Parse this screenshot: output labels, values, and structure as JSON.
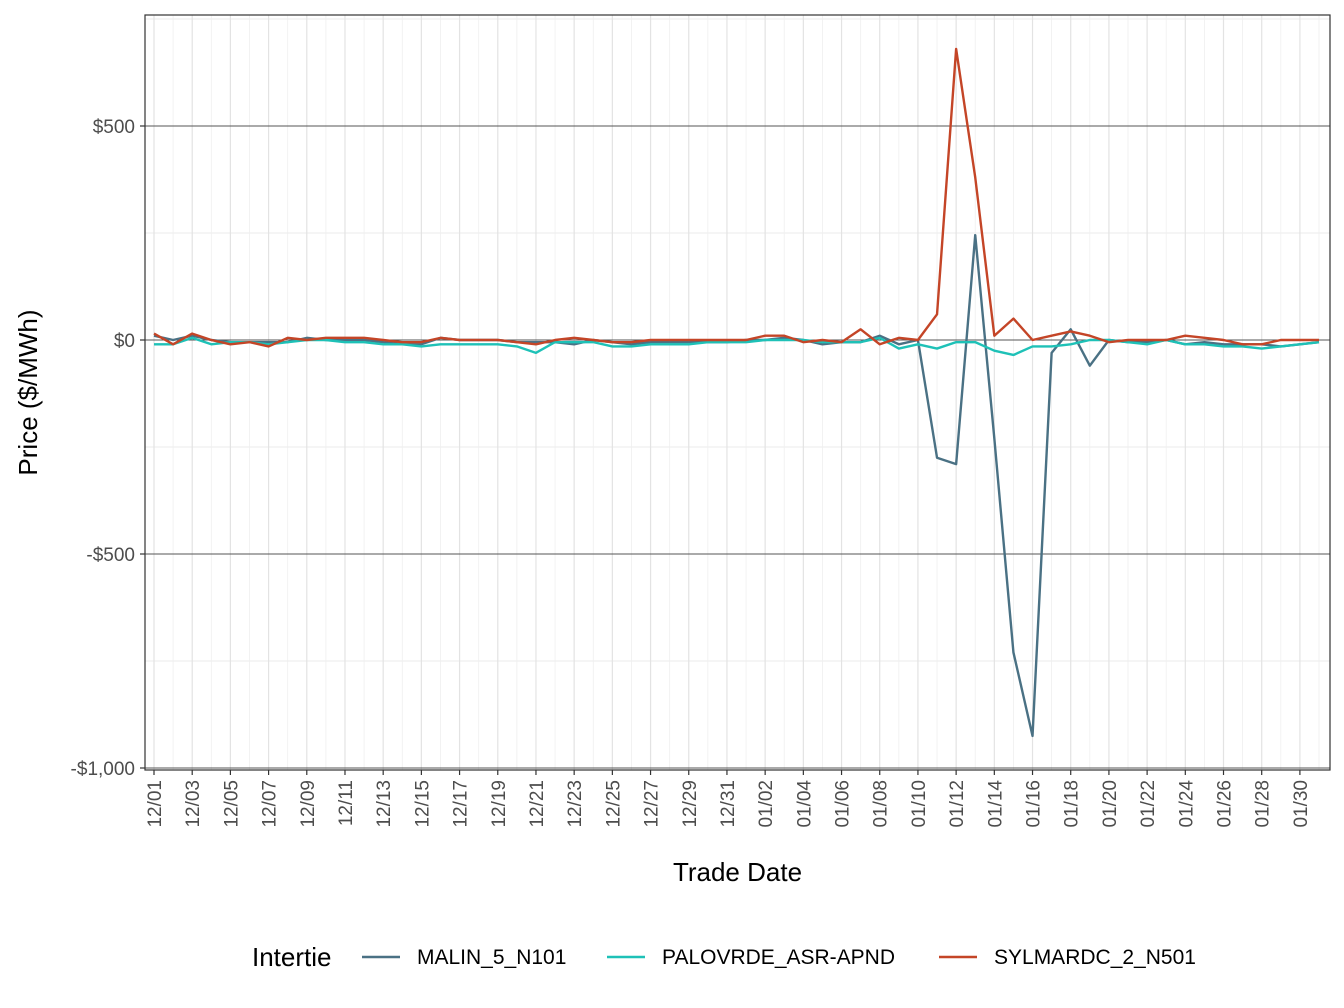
{
  "chart_data": {
    "type": "line",
    "xlabel": "Trade Date",
    "ylabel": "Price ($/MWh)",
    "ylim": [
      -1000,
      750
    ],
    "y_ticks": [
      {
        "value": 500,
        "label": "$500"
      },
      {
        "value": 0,
        "label": "$0"
      },
      {
        "value": -500,
        "label": "-$500"
      },
      {
        "value": -1000,
        "label": "-$1,000"
      }
    ],
    "x": [
      "12/01",
      "12/02",
      "12/03",
      "12/04",
      "12/05",
      "12/06",
      "12/07",
      "12/08",
      "12/09",
      "12/10",
      "12/11",
      "12/12",
      "12/13",
      "12/14",
      "12/15",
      "12/16",
      "12/17",
      "12/18",
      "12/19",
      "12/20",
      "12/21",
      "12/22",
      "12/23",
      "12/24",
      "12/25",
      "12/26",
      "12/27",
      "12/28",
      "12/29",
      "12/30",
      "12/31",
      "01/01",
      "01/02",
      "01/03",
      "01/04",
      "01/05",
      "01/06",
      "01/07",
      "01/08",
      "01/09",
      "01/10",
      "01/11",
      "01/12",
      "01/13",
      "01/14",
      "01/15",
      "01/16",
      "01/17",
      "01/18",
      "01/19",
      "01/20",
      "01/21",
      "01/22",
      "01/23",
      "01/24",
      "01/25",
      "01/26",
      "01/27",
      "01/28",
      "01/29",
      "01/30",
      "01/31"
    ],
    "x_tick_labels": [
      "12/01",
      "12/03",
      "12/05",
      "12/07",
      "12/09",
      "12/11",
      "12/13",
      "12/15",
      "12/17",
      "12/19",
      "12/21",
      "12/23",
      "12/25",
      "12/27",
      "12/29",
      "12/31",
      "01/02",
      "01/04",
      "01/06",
      "01/08",
      "01/10",
      "01/12",
      "01/14",
      "01/16",
      "01/18",
      "01/20",
      "01/22",
      "01/24",
      "01/26",
      "01/28",
      "01/30"
    ],
    "grid": true,
    "legend_title": "Intertie",
    "legend_position": "bottom",
    "series": [
      {
        "name": "MALIN_5_N101",
        "color": "#4a7184",
        "values": [
          10,
          0,
          10,
          0,
          -5,
          -5,
          -5,
          -5,
          5,
          0,
          0,
          0,
          -5,
          -10,
          -10,
          5,
          0,
          0,
          0,
          -5,
          -5,
          -5,
          -10,
          0,
          -5,
          -10,
          -5,
          -5,
          -5,
          -5,
          -5,
          0,
          0,
          5,
          0,
          -10,
          -5,
          -5,
          10,
          -10,
          0,
          -275,
          -290,
          245,
          -230,
          -730,
          -925,
          -30,
          25,
          -60,
          0,
          -5,
          -5,
          0,
          -10,
          -5,
          -10,
          -10,
          -10,
          -15,
          -10,
          -5
        ]
      },
      {
        "name": "PALOVRDE_ASR-APND",
        "color": "#1ec1b7",
        "values": [
          -10,
          -10,
          5,
          -10,
          -5,
          -5,
          -10,
          -5,
          0,
          0,
          -5,
          -5,
          -10,
          -10,
          -15,
          -10,
          -10,
          -10,
          -10,
          -15,
          -30,
          -5,
          -5,
          -5,
          -15,
          -15,
          -10,
          -10,
          -10,
          -5,
          -5,
          -5,
          0,
          0,
          0,
          -5,
          -5,
          -5,
          5,
          -20,
          -10,
          -20,
          -5,
          -5,
          -25,
          -35,
          -15,
          -15,
          -10,
          0,
          0,
          -5,
          -10,
          0,
          -10,
          -10,
          -15,
          -15,
          -20,
          -15,
          -10,
          -5
        ]
      },
      {
        "name": "SYLMARDC_2_N501",
        "color": "#c44527",
        "values": [
          15,
          -10,
          15,
          0,
          -10,
          -5,
          -15,
          5,
          0,
          5,
          5,
          5,
          0,
          -5,
          -5,
          5,
          0,
          0,
          0,
          -5,
          -10,
          0,
          5,
          0,
          -5,
          -5,
          0,
          0,
          0,
          0,
          0,
          0,
          10,
          10,
          -5,
          0,
          -5,
          25,
          -10,
          5,
          0,
          60,
          680,
          380,
          10,
          50,
          0,
          10,
          20,
          10,
          -5,
          0,
          0,
          0,
          10,
          5,
          0,
          -10,
          -10,
          0,
          0,
          0
        ]
      }
    ]
  }
}
